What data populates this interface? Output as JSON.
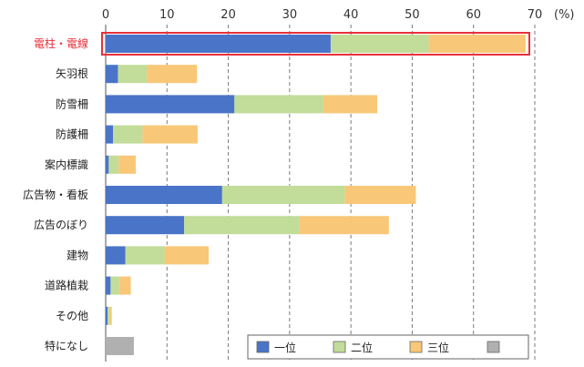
{
  "chart_data": {
    "type": "bar",
    "orientation": "horizontal",
    "stacked": true,
    "unit": "(%)",
    "xlim": [
      0,
      70
    ],
    "x_ticks": [
      0,
      10,
      20,
      30,
      40,
      50,
      60,
      70
    ],
    "grid": "vertical-dashed",
    "categories": [
      "電柱・電線",
      "矢羽根",
      "防雪柵",
      "防護柵",
      "案内標識",
      "広告物・看板",
      "広告のぼり",
      "建物",
      "道路植栽",
      "その他",
      "特になし"
    ],
    "highlighted_category": "電柱・電線",
    "series": [
      {
        "name": "一位",
        "color": "#4a74c8",
        "values": [
          36.7,
          2.0,
          21.0,
          1.2,
          0.5,
          19.0,
          12.8,
          3.2,
          0.8,
          0.3,
          0
        ]
      },
      {
        "name": "二位",
        "color": "#c2dc9a",
        "values": [
          16.0,
          4.7,
          14.5,
          4.8,
          1.6,
          20.0,
          18.8,
          6.4,
          1.4,
          0.3,
          0
        ]
      },
      {
        "name": "三位",
        "color": "#f8c878",
        "values": [
          15.8,
          8.2,
          8.8,
          9.0,
          2.8,
          11.6,
          14.6,
          7.2,
          1.9,
          0.4,
          0
        ]
      },
      {
        "name": "",
        "color": "#b0b0b0",
        "values": [
          0,
          0,
          0,
          0,
          0,
          0,
          0,
          0,
          0,
          0,
          4.6
        ]
      }
    ],
    "legend": {
      "position": "bottom-right",
      "entries": [
        "一位",
        "二位",
        "三位",
        ""
      ]
    }
  }
}
